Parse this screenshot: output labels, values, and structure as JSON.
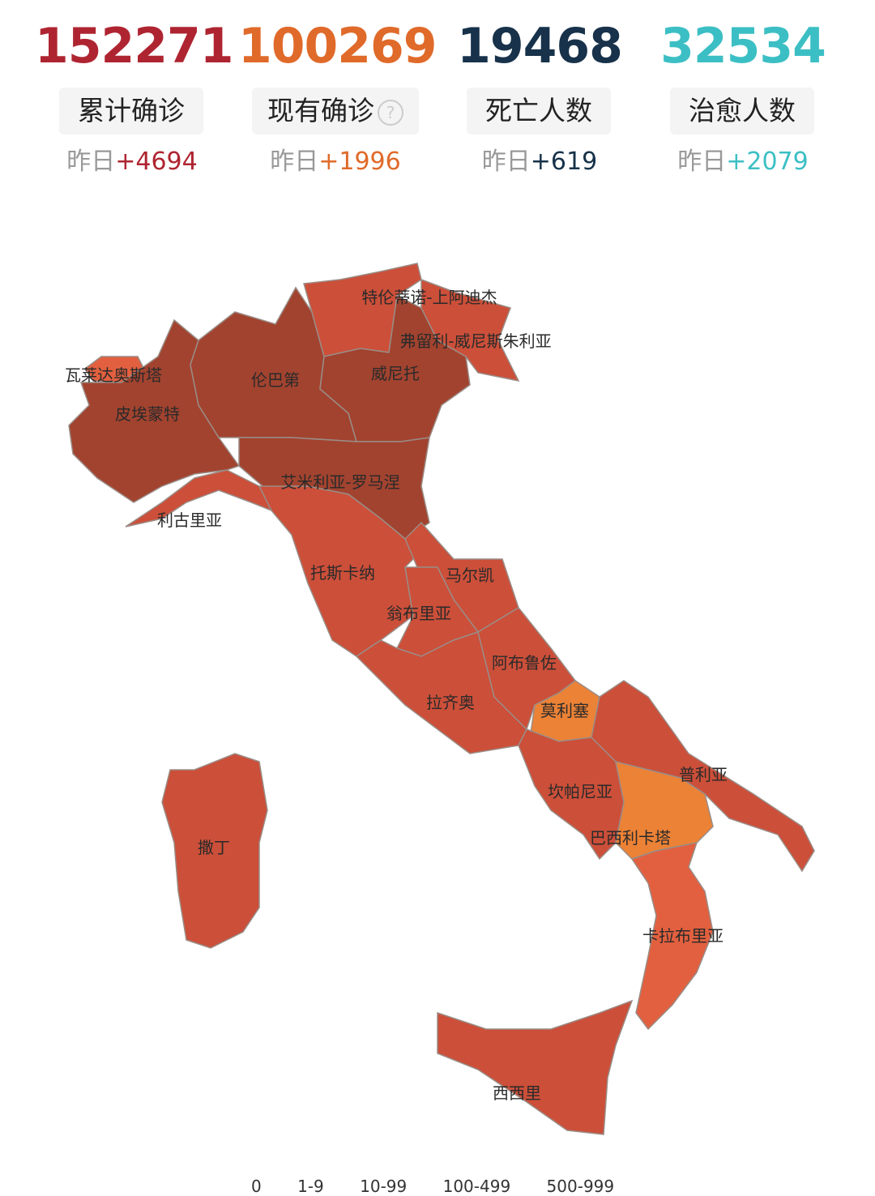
{
  "stats": [
    {
      "value": "152271",
      "label": "累计确诊",
      "yesterday_prefix": "昨日",
      "delta": "+4694",
      "color": "#ae2531"
    },
    {
      "value": "100269",
      "label": "现有确诊",
      "yesterday_prefix": "昨日",
      "delta": "+1996",
      "color": "#e06a2a",
      "help_icon": "question-circle-icon",
      "help_glyph": "?"
    },
    {
      "value": "19468",
      "label": "死亡人数",
      "yesterday_prefix": "昨日",
      "delta": "+619",
      "color": "#17324a"
    },
    {
      "value": "32534",
      "label": "治愈人数",
      "yesterday_prefix": "昨日",
      "delta": "+2079",
      "color": "#3cbfc4"
    }
  ],
  "map": {
    "colors": {
      "darkest": "#a2432f",
      "dark": "#cc4f39",
      "medium": "#e2603f",
      "light": "#ec8236"
    },
    "regions": [
      {
        "name": "瓦莱达奥斯塔",
        "level": "medium"
      },
      {
        "name": "皮埃蒙特",
        "level": "darkest"
      },
      {
        "name": "伦巴第",
        "level": "darkest"
      },
      {
        "name": "特伦蒂诺-上阿迪杰",
        "level": "dark"
      },
      {
        "name": "威尼托",
        "level": "darkest"
      },
      {
        "name": "弗留利-威尼斯朱利亚",
        "level": "dark"
      },
      {
        "name": "艾米利亚-罗马涅",
        "level": "darkest"
      },
      {
        "name": "利古里亚",
        "level": "dark"
      },
      {
        "name": "托斯卡纳",
        "level": "dark"
      },
      {
        "name": "马尔凯",
        "level": "dark"
      },
      {
        "name": "翁布里亚",
        "level": "dark"
      },
      {
        "name": "拉齐奥",
        "level": "dark"
      },
      {
        "name": "阿布鲁佐",
        "level": "dark"
      },
      {
        "name": "莫利塞",
        "level": "light"
      },
      {
        "name": "坎帕尼亚",
        "level": "dark"
      },
      {
        "name": "普利亚",
        "level": "dark"
      },
      {
        "name": "巴西利卡塔",
        "level": "light"
      },
      {
        "name": "卡拉布里亚",
        "level": "medium"
      },
      {
        "name": "西西里",
        "level": "dark"
      },
      {
        "name": "撒丁",
        "level": "dark"
      }
    ]
  },
  "legend": [
    "0",
    "1-9",
    "10-99",
    "100-499",
    "500-999"
  ]
}
